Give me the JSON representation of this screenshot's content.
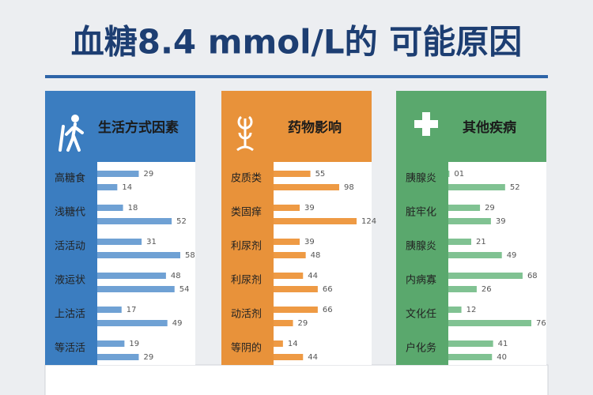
{
  "title": "血糖8.4 mmol/L的 可能原因",
  "panels": [
    {
      "title": "生活方式因素",
      "color": "#3b7dc0",
      "bar_color": "#6fa1d4",
      "rows": [
        {
          "label": "高糖食",
          "values": [
            29,
            14
          ]
        },
        {
          "label": "浅糖代",
          "values": [
            18,
            52
          ]
        },
        {
          "label": "活活动",
          "values": [
            31,
            58
          ]
        },
        {
          "label": "液运状",
          "values": [
            48,
            54
          ]
        },
        {
          "label": "上沽活",
          "values": [
            17,
            49
          ]
        },
        {
          "label": "等活活",
          "values": [
            19,
            29
          ]
        }
      ]
    },
    {
      "title": "药物影响",
      "color": "#e8923a",
      "bar_color": "#ee9a44",
      "rows": [
        {
          "label": "皮质类",
          "values": [
            55,
            98
          ]
        },
        {
          "label": "类固痒",
          "values": [
            39,
            124
          ]
        },
        {
          "label": "利尿剂",
          "values": [
            39,
            48
          ]
        },
        {
          "label": "利尿剂",
          "values": [
            44,
            66
          ]
        },
        {
          "label": "动活剂",
          "values": [
            66,
            29
          ]
        },
        {
          "label": "等阴的",
          "values": [
            14,
            44
          ]
        }
      ]
    },
    {
      "title": "其他疾病",
      "color": "#5aa86d",
      "bar_color": "#80c292",
      "rows": [
        {
          "label": "胰腺炎",
          "values": [
            1,
            52
          ],
          "value_labels": [
            "01",
            "52"
          ]
        },
        {
          "label": "脏牢化",
          "values": [
            29,
            39
          ]
        },
        {
          "label": "胰腺炎",
          "values": [
            21,
            49
          ]
        },
        {
          "label": "内病寡",
          "values": [
            68,
            26
          ]
        },
        {
          "label": "文化任",
          "values": [
            12,
            76
          ]
        },
        {
          "label": "户化务",
          "values": [
            41,
            40
          ]
        }
      ]
    }
  ]
}
